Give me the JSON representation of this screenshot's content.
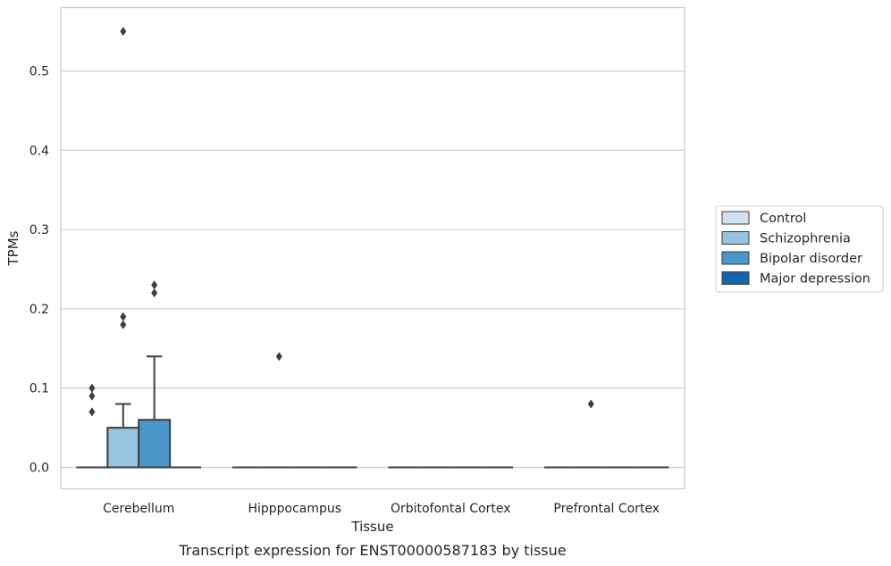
{
  "chart_data": {
    "type": "box",
    "title": "",
    "caption": "Transcript expression for ENST00000587183 by tissue",
    "xlabel": "Tissue",
    "ylabel": "TPMs",
    "ylim": [
      -0.027,
      0.58
    ],
    "yticks": [
      "0.0",
      "0.1",
      "0.2",
      "0.3",
      "0.4",
      "0.5"
    ],
    "ytick_values": [
      0,
      0.1,
      0.2,
      0.3,
      0.4,
      0.5
    ],
    "grid": true,
    "legend_position": "right",
    "categories": [
      "Cerebellum",
      "Hipppocampus",
      "Orbitofontal Cortex",
      "Prefrontal Cortex"
    ],
    "series": [
      {
        "name": "Control",
        "color": "#d0e1f2",
        "boxes": [
          {
            "q1": 0,
            "median": 0,
            "q3": 0,
            "whisker_low": 0,
            "whisker_high": 0,
            "outliers": [
              0.07,
              0.09,
              0.1
            ]
          },
          {
            "q1": 0,
            "median": 0,
            "q3": 0,
            "whisker_low": 0,
            "whisker_high": 0,
            "outliers": []
          },
          {
            "q1": 0,
            "median": 0,
            "q3": 0,
            "whisker_low": 0,
            "whisker_high": 0,
            "outliers": []
          },
          {
            "q1": 0,
            "median": 0,
            "q3": 0,
            "whisker_low": 0,
            "whisker_high": 0,
            "outliers": []
          }
        ]
      },
      {
        "name": "Schizophrenia",
        "color": "#94c4df",
        "boxes": [
          {
            "q1": 0,
            "median": 0,
            "q3": 0.05,
            "whisker_low": 0,
            "whisker_high": 0.08,
            "outliers": [
              0.18,
              0.19,
              0.55
            ]
          },
          {
            "q1": 0,
            "median": 0,
            "q3": 0,
            "whisker_low": 0,
            "whisker_high": 0,
            "outliers": [
              0.14
            ]
          },
          {
            "q1": 0,
            "median": 0,
            "q3": 0,
            "whisker_low": 0,
            "whisker_high": 0,
            "outliers": []
          },
          {
            "q1": 0,
            "median": 0,
            "q3": 0,
            "whisker_low": 0,
            "whisker_high": 0,
            "outliers": [
              0.08
            ]
          }
        ]
      },
      {
        "name": "Bipolar disorder",
        "color": "#4a98c9",
        "boxes": [
          {
            "q1": 0,
            "median": 0,
            "q3": 0.06,
            "whisker_low": 0,
            "whisker_high": 0.14,
            "outliers": [
              0.22,
              0.23
            ]
          },
          {
            "q1": 0,
            "median": 0,
            "q3": 0,
            "whisker_low": 0,
            "whisker_high": 0,
            "outliers": []
          },
          {
            "q1": 0,
            "median": 0,
            "q3": 0,
            "whisker_low": 0,
            "whisker_high": 0,
            "outliers": []
          },
          {
            "q1": 0,
            "median": 0,
            "q3": 0,
            "whisker_low": 0,
            "whisker_high": 0,
            "outliers": []
          }
        ]
      },
      {
        "name": "Major depression",
        "color": "#1764ab",
        "boxes": [
          {
            "q1": 0,
            "median": 0,
            "q3": 0,
            "whisker_low": 0,
            "whisker_high": 0,
            "outliers": []
          },
          {
            "q1": 0,
            "median": 0,
            "q3": 0,
            "whisker_low": 0,
            "whisker_high": 0,
            "outliers": []
          },
          {
            "q1": 0,
            "median": 0,
            "q3": 0,
            "whisker_low": 0,
            "whisker_high": 0,
            "outliers": []
          },
          {
            "q1": 0,
            "median": 0,
            "q3": 0,
            "whisker_low": 0,
            "whisker_high": 0,
            "outliers": []
          }
        ]
      }
    ]
  }
}
